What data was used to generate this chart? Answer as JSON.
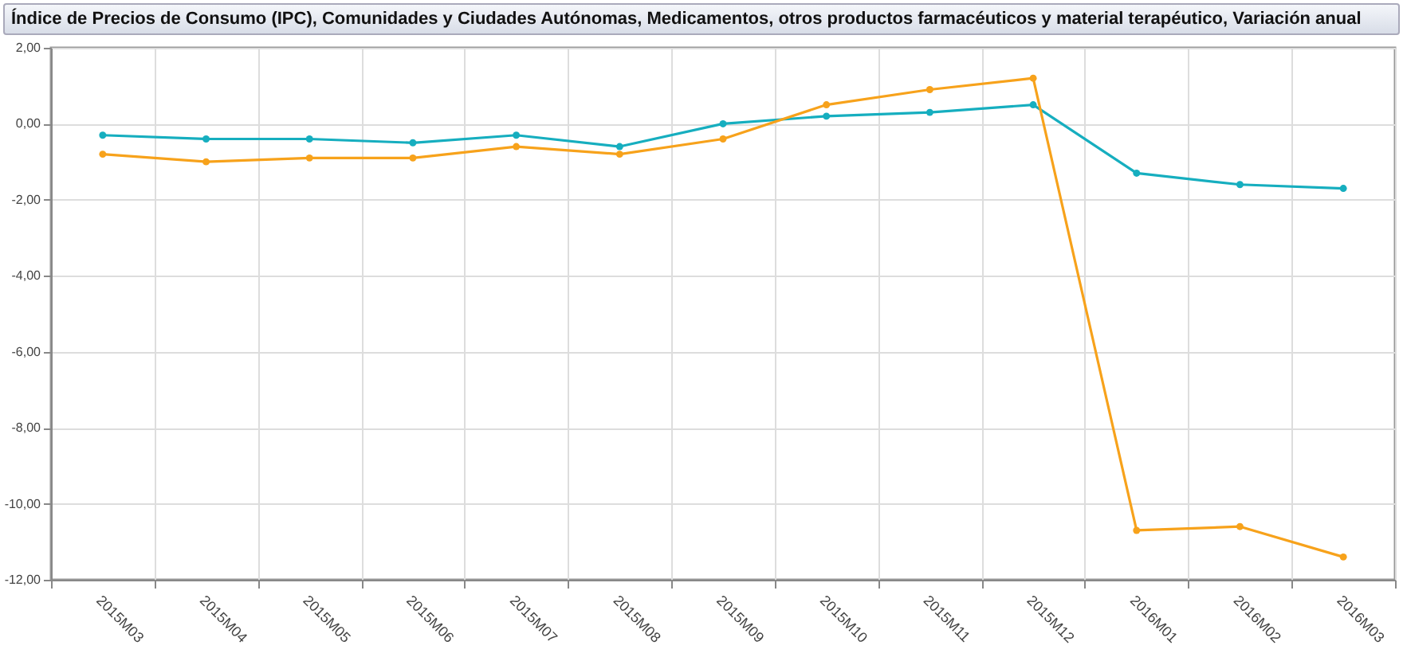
{
  "chart_data": {
    "type": "line",
    "title": "Índice de Precios de Consumo (IPC), Comunidades y Ciudades Autónomas, Medicamentos, otros productos farmacéuticos y material terapéutico, Variación anual",
    "categories": [
      "2015M03",
      "2015M04",
      "2015M05",
      "2015M06",
      "2015M07",
      "2015M08",
      "2015M09",
      "2015M10",
      "2015M11",
      "2015M12",
      "2016M01",
      "2016M02",
      "2016M03"
    ],
    "series": [
      {
        "color": "#16aebf",
        "values": [
          -0.3,
          -0.4,
          -0.4,
          -0.5,
          -0.3,
          -0.6,
          0.0,
          0.2,
          0.3,
          0.5,
          -1.3,
          -1.6,
          -1.7
        ]
      },
      {
        "color": "#f7a21b",
        "values": [
          -0.8,
          -1.0,
          -0.9,
          -0.9,
          -0.6,
          -0.8,
          -0.4,
          0.5,
          0.9,
          1.2,
          -10.7,
          -10.6,
          -11.4
        ]
      }
    ],
    "ylim": [
      -12,
      2
    ],
    "yticks": [
      {
        "value": -12,
        "label": "-12,00"
      },
      {
        "value": -10,
        "label": "-10,00"
      },
      {
        "value": -8,
        "label": "-8,00"
      },
      {
        "value": -6,
        "label": "-6,00"
      },
      {
        "value": -4,
        "label": "-4,00"
      },
      {
        "value": -2,
        "label": "-2,00"
      },
      {
        "value": 0,
        "label": "0,00"
      },
      {
        "value": 2,
        "label": "2,00"
      }
    ],
    "grid": true,
    "marker": "circle",
    "legend": false
  }
}
